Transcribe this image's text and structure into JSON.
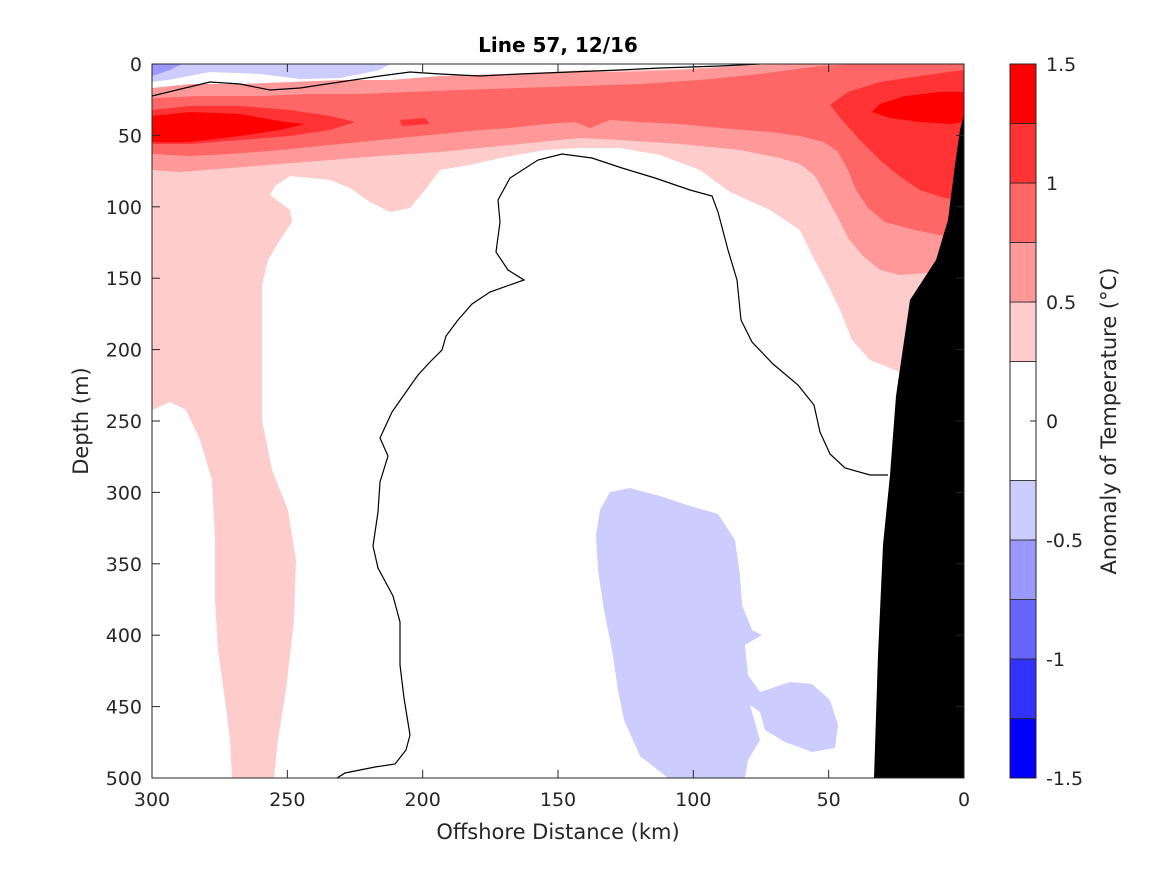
{
  "chart_data": {
    "type": "heatmap",
    "subtype": "filled-contour-section",
    "title": "Line 57, 12/16",
    "xlabel": "Offshore Distance (km)",
    "ylabel": "Depth (m)",
    "x_reversed": true,
    "y_reversed": true,
    "xlim": [
      0,
      300
    ],
    "ylim": [
      0,
      500
    ],
    "xticks": [
      "300",
      "250",
      "200",
      "150",
      "100",
      "50",
      "0"
    ],
    "yticks": [
      "0",
      "50",
      "100",
      "150",
      "200",
      "250",
      "300",
      "350",
      "400",
      "450",
      "500"
    ],
    "colorbar": {
      "label": "Anomaly of Temperature (°C)",
      "range": [
        -1.5,
        1.5
      ],
      "ticks": [
        "1.5",
        "1",
        "0.5",
        "0",
        "-0.5",
        "-1",
        "-1.5"
      ],
      "levels": [
        -1.5,
        -1.25,
        -1.0,
        -0.75,
        -0.5,
        -0.25,
        0.25,
        0.5,
        0.75,
        1.0,
        1.25,
        1.5
      ],
      "colors": [
        "#0000ff",
        "#3333ff",
        "#6666ff",
        "#9999ff",
        "#ccccff",
        "#ffffff",
        "#ffffff",
        "#ffcccc",
        "#ff9999",
        "#ff6666",
        "#ff3333",
        "#ff0000"
      ]
    },
    "regions": [
      {
        "name": "surface warm layer",
        "anomaly_min": 0.25,
        "anomaly_max": 1.5,
        "depth_range_m": [
          20,
          80
        ],
        "distance_range_km": [
          0,
          300
        ]
      },
      {
        "name": "warm core offshore",
        "anomaly_min": 1.25,
        "depth_range_m": [
          35,
          55
        ],
        "distance_range_km": [
          250,
          300
        ]
      },
      {
        "name": "warm core nearshore",
        "anomaly_min": 1.25,
        "depth_range_m": [
          20,
          90
        ],
        "distance_range_km": [
          0,
          35
        ]
      },
      {
        "name": "warm tongue offshore",
        "anomaly_min": 0.25,
        "depth_range_m": [
          80,
          500
        ],
        "distance_range_km": [
          255,
          300
        ]
      },
      {
        "name": "cool patch",
        "anomaly_max": -0.25,
        "depth_range_m": [
          290,
          500
        ],
        "distance_range_km": [
          45,
          135
        ]
      },
      {
        "name": "bathymetry",
        "depth_range_m": [
          35,
          500
        ],
        "distance_range_km": [
          0,
          33
        ]
      }
    ]
  }
}
